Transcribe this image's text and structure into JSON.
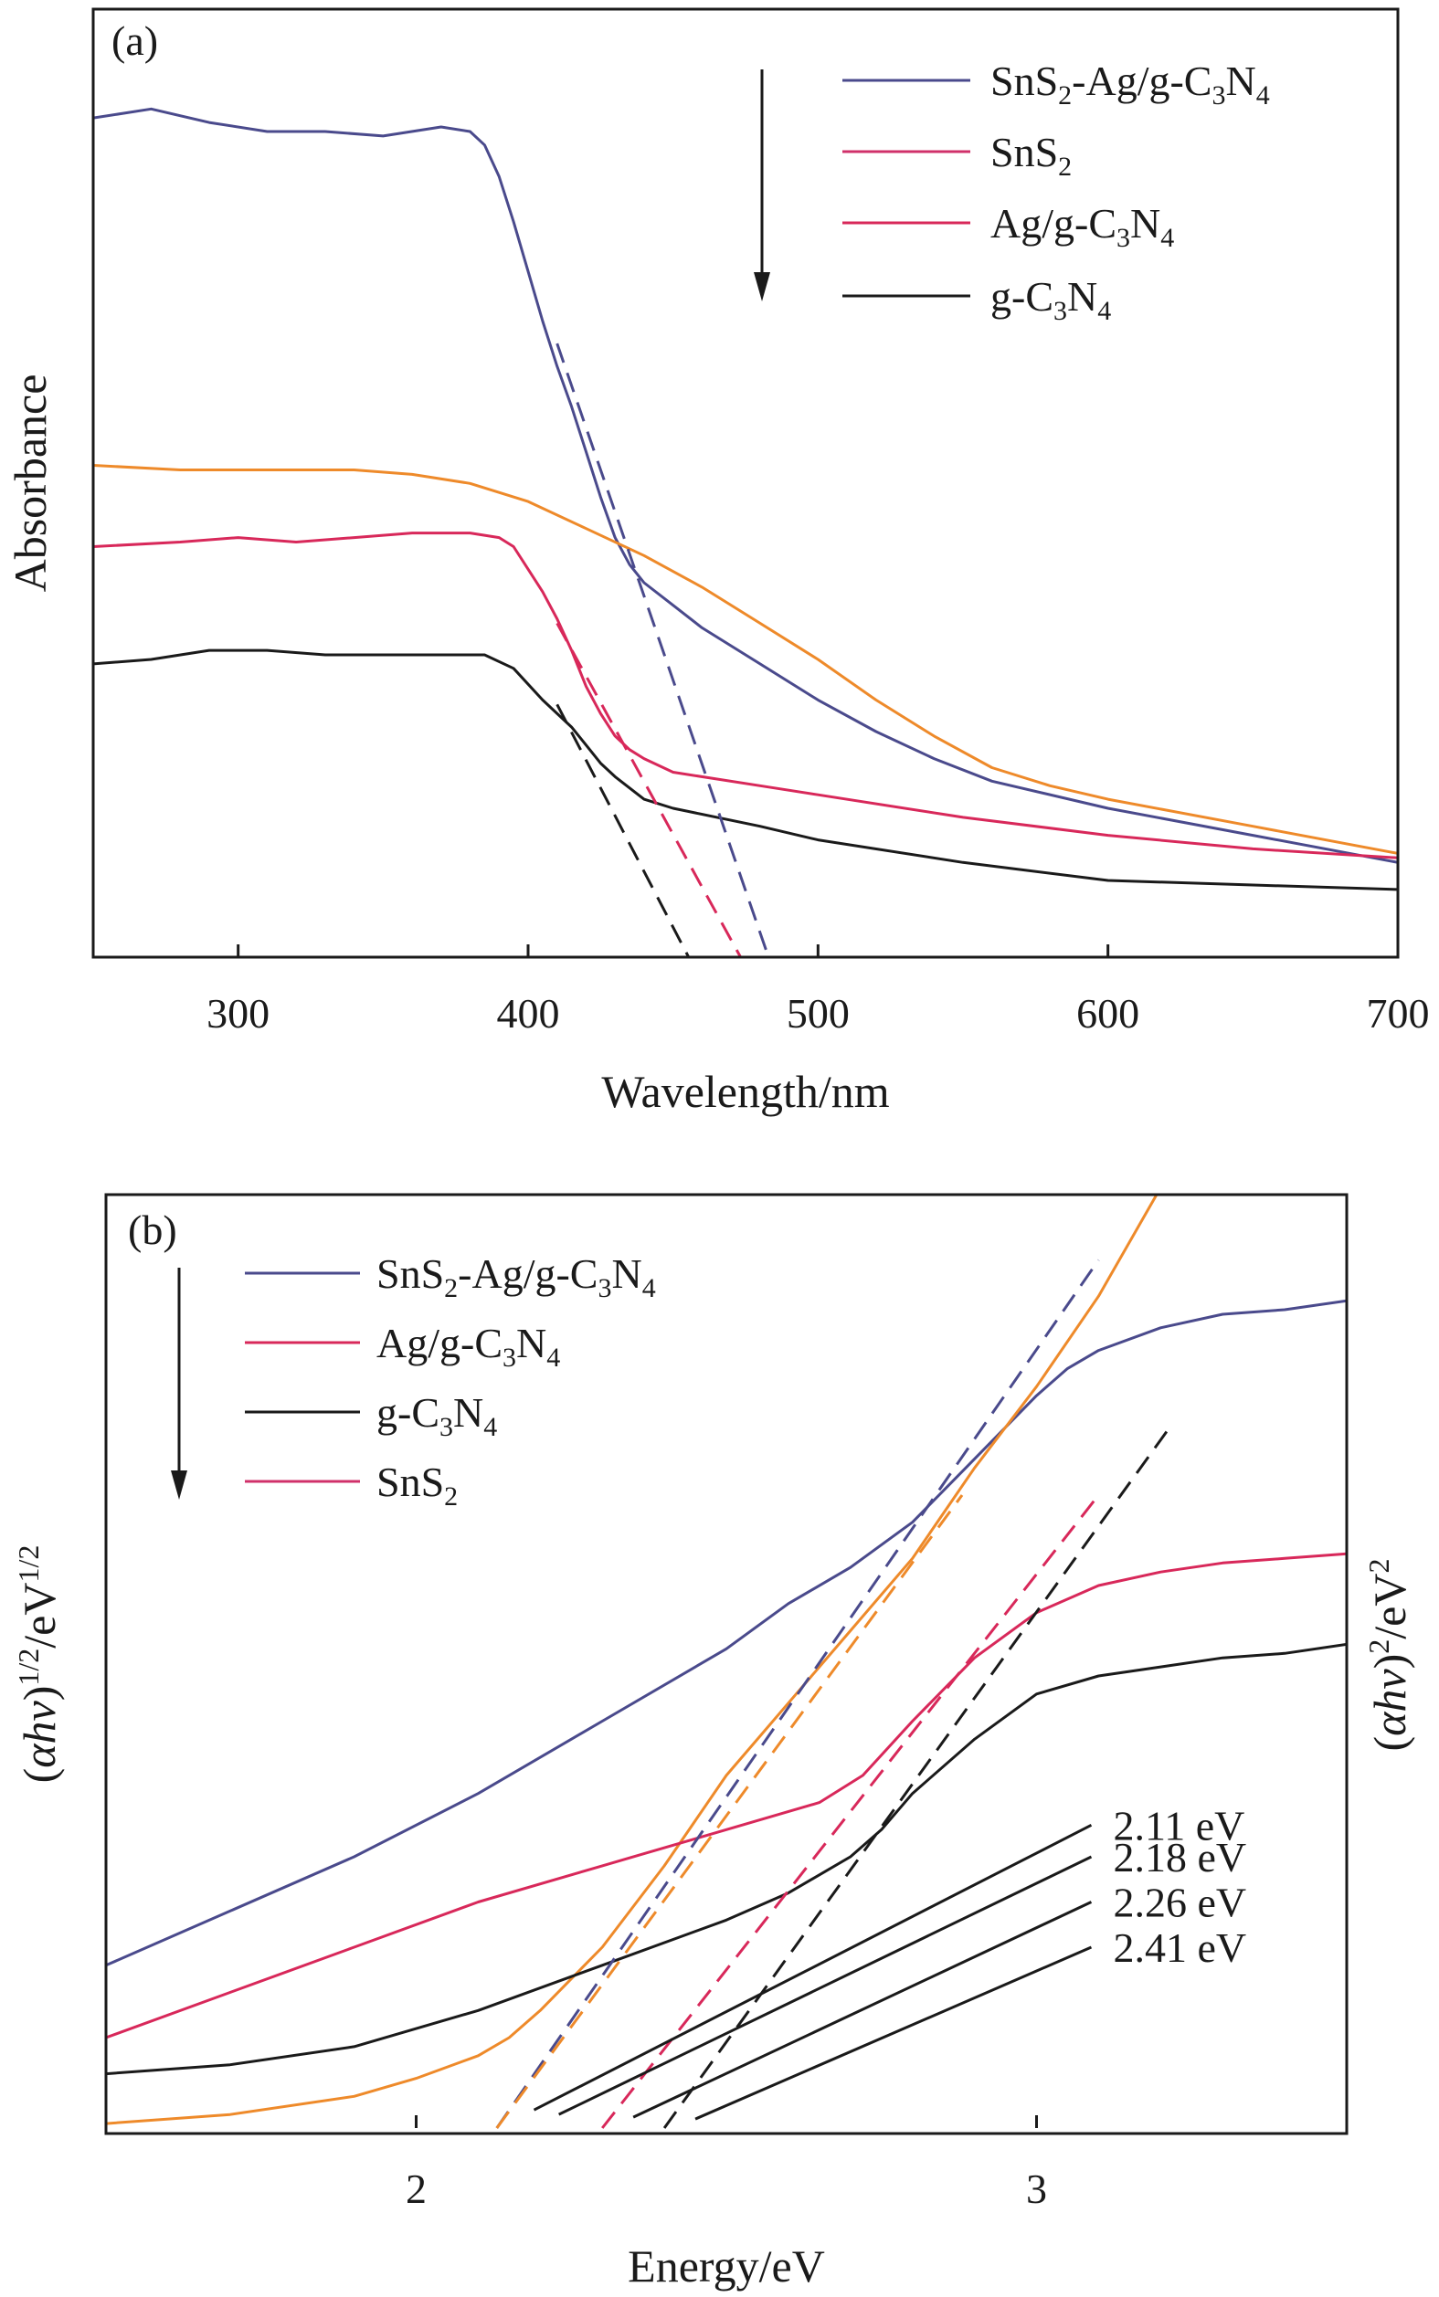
{
  "colors": {
    "composite": "#4a4a8c",
    "sns2": "#ee8a2a",
    "ag_gcn": "#d8285a",
    "gcn": "#1a1a1a",
    "sns2_legend_b": "#d0306a"
  },
  "chart_data": [
    {
      "panel": "(a)",
      "type": "line",
      "xlabel": "Wavelength/nm",
      "ylabel": "Absorbance",
      "xlim": [
        250,
        700
      ],
      "ylim": [
        0,
        1
      ],
      "xticks": [
        300,
        400,
        500,
        600,
        700
      ],
      "legend": [
        "SnS2-Ag/g-C3N4",
        "SnS2",
        "Ag/g-C3N4",
        "g-C3N4"
      ],
      "series": [
        {
          "name": "SnS2-Ag/g-C3N4",
          "color_key": "composite",
          "x": [
            250,
            270,
            290,
            310,
            330,
            350,
            370,
            380,
            385,
            390,
            395,
            400,
            405,
            410,
            415,
            420,
            425,
            430,
            435,
            440,
            450,
            460,
            480,
            500,
            520,
            540,
            560,
            600,
            650,
            700
          ],
          "y": [
            0.93,
            0.94,
            0.925,
            0.915,
            0.915,
            0.91,
            0.92,
            0.915,
            0.9,
            0.865,
            0.815,
            0.76,
            0.705,
            0.655,
            0.61,
            0.56,
            0.51,
            0.465,
            0.435,
            0.415,
            0.39,
            0.365,
            0.325,
            0.285,
            0.25,
            0.22,
            0.195,
            0.165,
            0.135,
            0.105
          ]
        },
        {
          "name": "SnS2",
          "color_key": "sns2",
          "x": [
            250,
            280,
            300,
            320,
            340,
            360,
            380,
            400,
            420,
            440,
            460,
            480,
            500,
            520,
            540,
            560,
            580,
            600,
            650,
            700
          ],
          "y": [
            0.545,
            0.54,
            0.54,
            0.54,
            0.54,
            0.535,
            0.525,
            0.505,
            0.475,
            0.445,
            0.41,
            0.37,
            0.33,
            0.285,
            0.245,
            0.21,
            0.19,
            0.175,
            0.145,
            0.115
          ]
        },
        {
          "name": "Ag/g-C3N4",
          "color_key": "ag_gcn",
          "x": [
            250,
            280,
            300,
            320,
            340,
            360,
            380,
            390,
            395,
            400,
            405,
            410,
            415,
            420,
            425,
            430,
            435,
            440,
            450,
            480,
            500,
            550,
            600,
            650,
            700
          ],
          "y": [
            0.455,
            0.46,
            0.465,
            0.46,
            0.465,
            0.47,
            0.47,
            0.465,
            0.455,
            0.43,
            0.405,
            0.375,
            0.34,
            0.3,
            0.27,
            0.245,
            0.23,
            0.22,
            0.205,
            0.19,
            0.18,
            0.155,
            0.135,
            0.12,
            0.11
          ]
        },
        {
          "name": "g-C3N4",
          "color_key": "gcn",
          "x": [
            250,
            270,
            290,
            310,
            330,
            350,
            370,
            385,
            395,
            405,
            415,
            420,
            425,
            430,
            440,
            450,
            480,
            500,
            550,
            600,
            650,
            700
          ],
          "y": [
            0.325,
            0.33,
            0.34,
            0.34,
            0.335,
            0.335,
            0.335,
            0.335,
            0.32,
            0.285,
            0.255,
            0.235,
            0.215,
            0.2,
            0.175,
            0.165,
            0.145,
            0.13,
            0.105,
            0.085,
            0.08,
            0.075
          ]
        }
      ],
      "tangents": [
        {
          "color_key": "composite",
          "x": [
            410,
            484
          ],
          "y": [
            0.68,
            -0.01
          ]
        },
        {
          "color_key": "ag_gcn",
          "x": [
            410,
            475
          ],
          "y": [
            0.37,
            -0.01
          ]
        },
        {
          "color_key": "gcn",
          "x": [
            410,
            457
          ],
          "y": [
            0.28,
            -0.01
          ]
        }
      ],
      "arrow": "down"
    },
    {
      "panel": "(b)",
      "type": "line",
      "xlabel": "Energy/eV",
      "ylabel_left": "(αhv)1/2/eV1/2",
      "ylabel_right": "(αhv)2/eV2",
      "xlim": [
        1.5,
        3.5
      ],
      "ylim": [
        0,
        1
      ],
      "xticks": [
        2,
        3
      ],
      "legend": [
        "SnS2-Ag/g-C3N4",
        "Ag/g-C3N4",
        "g-C3N4",
        "SnS2"
      ],
      "series": [
        {
          "name": "SnS2-Ag/g-C3N4",
          "color_key": "composite",
          "x": [
            1.5,
            1.7,
            1.9,
            2.1,
            2.3,
            2.5,
            2.6,
            2.7,
            2.8,
            2.9,
            3.0,
            3.05,
            3.1,
            3.2,
            3.3,
            3.4,
            3.5
          ],
          "y": [
            0.18,
            0.24,
            0.3,
            0.37,
            0.45,
            0.53,
            0.58,
            0.62,
            0.67,
            0.74,
            0.81,
            0.84,
            0.86,
            0.885,
            0.9,
            0.905,
            0.915
          ]
        },
        {
          "name": "SnS2",
          "color_key": "sns2",
          "x": [
            1.5,
            1.7,
            1.9,
            2.0,
            2.1,
            2.15,
            2.2,
            2.3,
            2.4,
            2.5,
            2.6,
            2.7,
            2.8,
            2.9,
            3.0,
            3.1,
            3.2
          ],
          "y": [
            0.005,
            0.015,
            0.035,
            0.055,
            0.08,
            0.1,
            0.13,
            0.2,
            0.29,
            0.39,
            0.47,
            0.55,
            0.63,
            0.73,
            0.82,
            0.92,
            1.04
          ]
        },
        {
          "name": "Ag/g-C3N4",
          "color_key": "ag_gcn",
          "x": [
            1.5,
            1.7,
            1.9,
            2.1,
            2.3,
            2.5,
            2.65,
            2.72,
            2.8,
            2.9,
            3.0,
            3.1,
            3.2,
            3.3,
            3.4,
            3.5
          ],
          "y": [
            0.1,
            0.15,
            0.2,
            0.25,
            0.29,
            0.33,
            0.36,
            0.39,
            0.45,
            0.52,
            0.57,
            0.6,
            0.615,
            0.625,
            0.63,
            0.635
          ]
        },
        {
          "name": "g-C3N4",
          "color_key": "gcn",
          "x": [
            1.5,
            1.7,
            1.9,
            2.1,
            2.3,
            2.5,
            2.6,
            2.7,
            2.75,
            2.8,
            2.9,
            3.0,
            3.1,
            3.2,
            3.3,
            3.4,
            3.5
          ],
          "y": [
            0.06,
            0.07,
            0.09,
            0.13,
            0.18,
            0.23,
            0.26,
            0.3,
            0.33,
            0.37,
            0.43,
            0.48,
            0.5,
            0.51,
            0.52,
            0.525,
            0.535
          ]
        }
      ],
      "tangents": [
        {
          "color_key": "composite",
          "x": [
            2.13,
            3.1
          ],
          "y": [
            0.0,
            0.96
          ]
        },
        {
          "color_key": "sns2",
          "x": [
            2.13,
            2.88
          ],
          "y": [
            0.0,
            0.7
          ]
        },
        {
          "color_key": "ag_gcn",
          "x": [
            2.3,
            3.1
          ],
          "y": [
            0.0,
            0.7
          ]
        },
        {
          "color_key": "gcn",
          "x": [
            2.4,
            3.22
          ],
          "y": [
            0.0,
            0.78
          ]
        }
      ],
      "annotations": [
        {
          "text": "2.11 eV",
          "x": 3.05,
          "y": 0.335,
          "from_x": 2.19,
          "from_y": 0.02
        },
        {
          "text": "2.18 eV",
          "x": 3.05,
          "y": 0.3,
          "from_x": 2.23,
          "from_y": 0.015
        },
        {
          "text": "2.26 eV",
          "x": 3.05,
          "y": 0.25,
          "from_x": 2.35,
          "from_y": 0.012
        },
        {
          "text": "2.41 eV",
          "x": 3.05,
          "y": 0.2,
          "from_x": 2.45,
          "from_y": 0.01
        }
      ],
      "arrow": "down"
    }
  ]
}
